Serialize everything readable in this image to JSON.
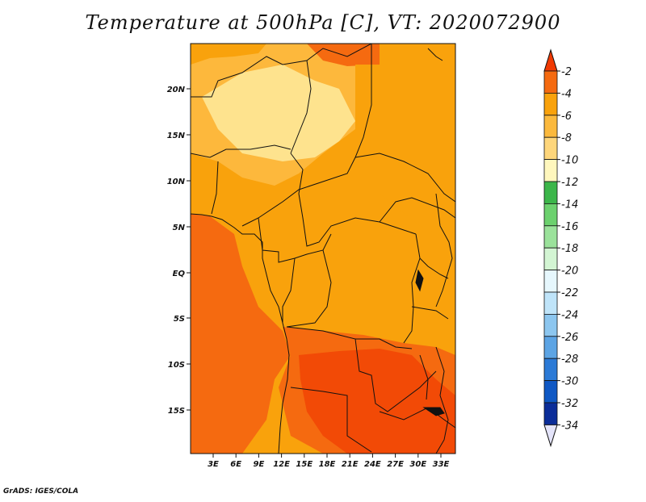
{
  "title": "Temperature at 500hPa [C], VT: 2020072900",
  "credit": "GrADS: IGES/COLA",
  "map": {
    "x_ticks": [
      "3E",
      "6E",
      "9E",
      "12E",
      "15E",
      "18E",
      "21E",
      "24E",
      "27E",
      "30E",
      "33E"
    ],
    "y_ticks": [
      "20N",
      "15N",
      "10N",
      "5N",
      "EQ",
      "5S",
      "10S",
      "15S"
    ],
    "fill_colors": {
      "cold": "#fee38e",
      "mid": "#fdb83c",
      "warm": "#f9a20c",
      "hot": "#f56a10",
      "hotter": "#f24a06"
    }
  },
  "colorbar": {
    "labels": [
      "-2",
      "-4",
      "-6",
      "-8",
      "-10",
      "-12",
      "-14",
      "-16",
      "-18",
      "-20",
      "-22",
      "-24",
      "-26",
      "-28",
      "-30",
      "-32",
      "-34"
    ],
    "colors": [
      "#f03a03",
      "#f56a10",
      "#f9a20c",
      "#fbb93d",
      "#fed67b",
      "#fff7bd",
      "#3cb64a",
      "#6cd16e",
      "#9be29b",
      "#d3f5d3",
      "#e6f7fd",
      "#bfe4f9",
      "#8cc6ef",
      "#5ca4e4",
      "#2b7ad6",
      "#0f58c4",
      "#0b2d99",
      "#0a1a6d"
    ],
    "end_colors": {
      "top": "#f03a03",
      "bottom": "#e4e4fa"
    }
  }
}
